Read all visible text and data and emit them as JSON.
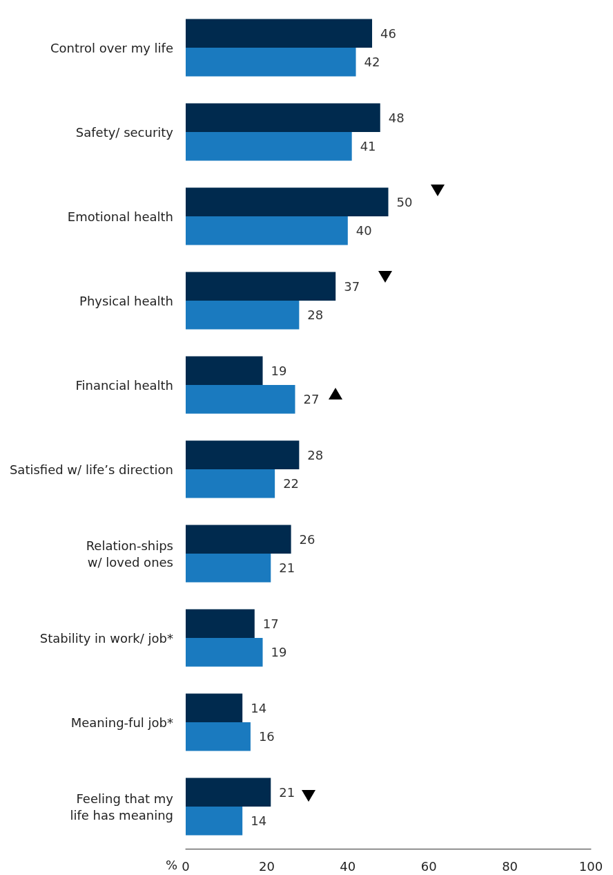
{
  "chart_data": {
    "type": "bar",
    "orientation": "horizontal",
    "xlabel": "%",
    "categories": [
      "Control over my life",
      "Safety/ security",
      "Emotional health",
      "Physical health",
      "Financial health",
      "Satisfied w/ life’s direction",
      "Relation-ships\nw/ loved ones",
      "Stability in work/ job*",
      "Meaning-ful job*",
      "Feeling that my\nlife has meaning"
    ],
    "series": [
      {
        "color": "#002a4e",
        "values": [
          46,
          48,
          50,
          37,
          19,
          28,
          26,
          17,
          14,
          21
        ]
      },
      {
        "color": "#1a7abf",
        "values": [
          42,
          41,
          40,
          28,
          27,
          22,
          21,
          19,
          16,
          14
        ]
      }
    ],
    "xlim": [
      0,
      100
    ],
    "xticks": [
      0,
      20,
      40,
      60,
      80,
      100
    ],
    "grid": false,
    "data_labels": true
  }
}
